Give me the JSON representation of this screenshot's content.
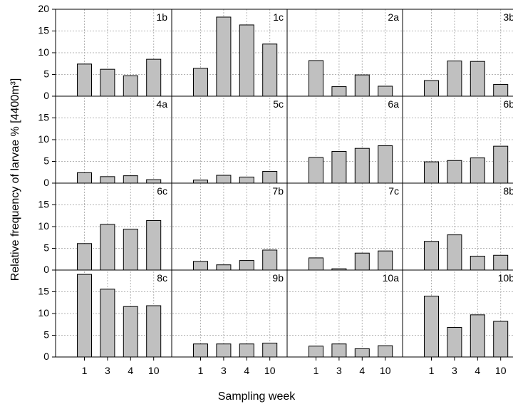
{
  "chart_data": {
    "type": "bar",
    "ylabel": "Relative frequency of larvae % [4400m³]",
    "xlabel": "Sampling week",
    "categories": [
      "1",
      "3",
      "4",
      "10"
    ],
    "ylim": [
      0,
      20
    ],
    "yticks": [
      "0",
      "5",
      "10",
      "15",
      "20"
    ],
    "grid": true,
    "bar_color": "#c0c0c0",
    "panels": [
      {
        "label": "1b",
        "values": [
          7.4,
          6.2,
          4.7,
          8.5
        ]
      },
      {
        "label": "1c",
        "values": [
          6.4,
          18.2,
          16.4,
          12.0
        ]
      },
      {
        "label": "2a",
        "values": [
          8.2,
          2.2,
          4.9,
          2.3
        ]
      },
      {
        "label": "3b",
        "values": [
          3.6,
          8.1,
          8.0,
          2.7
        ]
      },
      {
        "label": "4a",
        "values": [
          2.4,
          1.5,
          1.7,
          0.8
        ]
      },
      {
        "label": "5c",
        "values": [
          0.7,
          1.8,
          1.4,
          2.7
        ]
      },
      {
        "label": "6a",
        "values": [
          5.9,
          7.3,
          8.0,
          8.6
        ]
      },
      {
        "label": "6b",
        "values": [
          4.9,
          5.2,
          5.8,
          8.5
        ]
      },
      {
        "label": "6c",
        "values": [
          6.1,
          10.5,
          9.4,
          11.4
        ]
      },
      {
        "label": "7b",
        "values": [
          2.0,
          1.2,
          2.2,
          4.6
        ]
      },
      {
        "label": "7c",
        "values": [
          2.8,
          0.3,
          3.9,
          4.4
        ]
      },
      {
        "label": "8b",
        "values": [
          6.6,
          8.1,
          3.2,
          3.4
        ]
      },
      {
        "label": "8c",
        "values": [
          19.0,
          15.6,
          11.6,
          11.8
        ]
      },
      {
        "label": "9b",
        "values": [
          3.0,
          3.0,
          3.0,
          3.2
        ]
      },
      {
        "label": "10a",
        "values": [
          2.5,
          3.0,
          1.9,
          2.6
        ]
      },
      {
        "label": "10b",
        "values": [
          14.0,
          6.8,
          9.7,
          8.2
        ]
      }
    ]
  }
}
